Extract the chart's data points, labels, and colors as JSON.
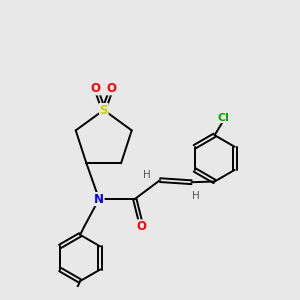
{
  "bg_color": "#e8e8e8",
  "atom_colors": {
    "S": "#cccc00",
    "O": "#ff0000",
    "N": "#0000ff",
    "Cl": "#00aa00",
    "C": "#000000",
    "H": "#555555"
  },
  "bond_color": "#000000",
  "bond_lw": 1.4,
  "font_size_atom": 8.5,
  "font_size_h": 7.5
}
